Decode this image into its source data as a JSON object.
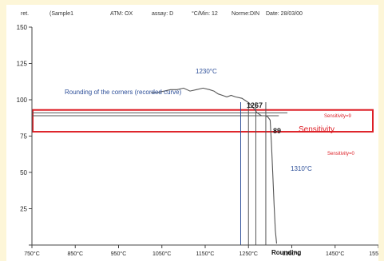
{
  "header": {
    "ref_label": "ret.",
    "sample": "(Sample1",
    "atm": "ATM: OX",
    "assay": "assay: D",
    "cmin": "°C/Min: 12",
    "norme": "Norme:DIN",
    "date": "Date: 28/03/00"
  },
  "annotations": {
    "rounding_caption": "Rounding of the corners (recorded curve)",
    "temp_1230": "1230°C",
    "temp_1310": "1310°C",
    "value_1267": "1267",
    "value_89": "89",
    "sensitivity_label": "Sensitivity",
    "sensitivity_top": "Sensitivity=9",
    "sensitivity_bottom": "Sensitivity=0",
    "rounding_marker": "Rounding"
  },
  "colors": {
    "curve": "#555555",
    "annotation_blue": "#2d4f99",
    "sensitivity_red": "#dd1f26",
    "vertical_blue": "#7c8fbf",
    "background": "#fdf6d8"
  },
  "chart_data": {
    "type": "line",
    "xlim": [
      750,
      1550
    ],
    "ylim": [
      0,
      150
    ],
    "x_ticks": [
      {
        "value": 750,
        "label": "750°C"
      },
      {
        "value": 850,
        "label": "850°C"
      },
      {
        "value": 950,
        "label": "950°C"
      },
      {
        "value": 1050,
        "label": "1050°C"
      },
      {
        "value": 1150,
        "label": "1150°C"
      },
      {
        "value": 1250,
        "label": "1250°C"
      },
      {
        "value": 1350,
        "label": "1350°C"
      },
      {
        "value": 1450,
        "label": "1450°C"
      },
      {
        "value": 1550,
        "label": "1550°C"
      }
    ],
    "y_ticks": [
      {
        "value": 0,
        "label": ""
      },
      {
        "value": 25,
        "label": "25"
      },
      {
        "value": 50,
        "label": "50"
      },
      {
        "value": 75,
        "label": "75"
      },
      {
        "value": 100,
        "label": "100"
      },
      {
        "value": 125,
        "label": "125"
      },
      {
        "value": 150,
        "label": "150"
      }
    ],
    "grid": false,
    "series": [
      {
        "x": [
          1025,
          1040,
          1055,
          1070,
          1085,
          1100,
          1115,
          1130,
          1145,
          1160,
          1170,
          1180,
          1190,
          1200,
          1210,
          1220,
          1235,
          1250,
          1260,
          1270,
          1280,
          1290,
          1295,
          1300,
          1303,
          1306,
          1309,
          1312,
          1315
        ],
        "y": [
          105,
          105,
          106,
          107,
          107,
          108,
          106,
          107,
          108,
          107,
          106,
          104,
          103,
          102,
          103,
          102,
          101,
          98,
          95,
          91,
          89,
          89,
          88,
          86,
          70,
          50,
          28,
          10,
          1
        ]
      }
    ],
    "reference_lines": {
      "horizontal": [
        {
          "y": 91,
          "x_range": [
            750,
            1340
          ],
          "color": "#555555"
        },
        {
          "y": 89,
          "x_range": [
            750,
            1320
          ],
          "color": "#555555"
        }
      ],
      "vertical": [
        {
          "x": 1232,
          "color": "#2d4f99"
        },
        {
          "x": 1250,
          "color": "#555555"
        },
        {
          "x": 1267,
          "color": "#555555"
        },
        {
          "x": 1290,
          "color": "#555555"
        }
      ]
    },
    "sensitivity_band": {
      "y_min": 78,
      "y_max": 93,
      "x_range": [
        750,
        1560
      ]
    }
  }
}
